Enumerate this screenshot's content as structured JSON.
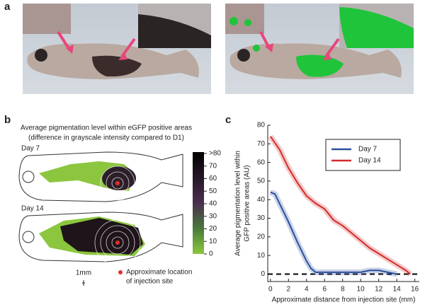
{
  "panels": {
    "a": {
      "label": "a"
    },
    "b": {
      "label": "b",
      "title": [
        "Average pigmentation level within eGFP positive areas",
        "(difference in grayscale intensity compared to D1)"
      ],
      "fish": [
        "Day 7",
        "Day 14"
      ],
      "colorbar_ticks": [
        {
          "value": 80,
          "label": ">80"
        },
        70,
        60,
        50,
        40,
        30,
        20,
        10,
        0
      ],
      "scale_label": "1mm",
      "marker_note": [
        "Approximate location",
        "of injection site"
      ]
    },
    "c": {
      "label": "c"
    }
  },
  "chart_data": {
    "type": "line",
    "xlabel": "Approximate distance from injection site (mm)",
    "ylabel": [
      "Average pigmentation level within",
      "GFP positive areas (AU)"
    ],
    "xlim": [
      -0.3,
      16.5
    ],
    "ylim": [
      -4,
      80
    ],
    "xticks": [
      0,
      2,
      4,
      6,
      8,
      10,
      12,
      14,
      16
    ],
    "yticks": [
      0,
      10,
      20,
      30,
      40,
      50,
      60,
      70,
      80
    ],
    "hline": 0,
    "legend": "upper right",
    "series": [
      {
        "name": "Day 7",
        "color": "#2a4f9e",
        "x": [
          0,
          0.5,
          1,
          2,
          3,
          4,
          4.5,
          5,
          6,
          7,
          8,
          9,
          10,
          11,
          12,
          13,
          14
        ],
        "values": [
          44,
          43,
          38,
          28,
          17,
          7,
          3,
          1,
          1,
          1,
          1,
          1,
          1,
          2,
          2,
          1,
          0
        ]
      },
      {
        "name": "Day 14",
        "color": "#d42a2a",
        "x": [
          0,
          1,
          2,
          3,
          4,
          5,
          6,
          7,
          8,
          9,
          10,
          11,
          12,
          13,
          14,
          15,
          15.5
        ],
        "values": [
          74,
          67,
          57,
          49,
          42,
          38,
          35,
          29,
          26,
          22,
          18,
          14,
          11,
          8,
          5,
          2,
          0
        ]
      }
    ]
  }
}
